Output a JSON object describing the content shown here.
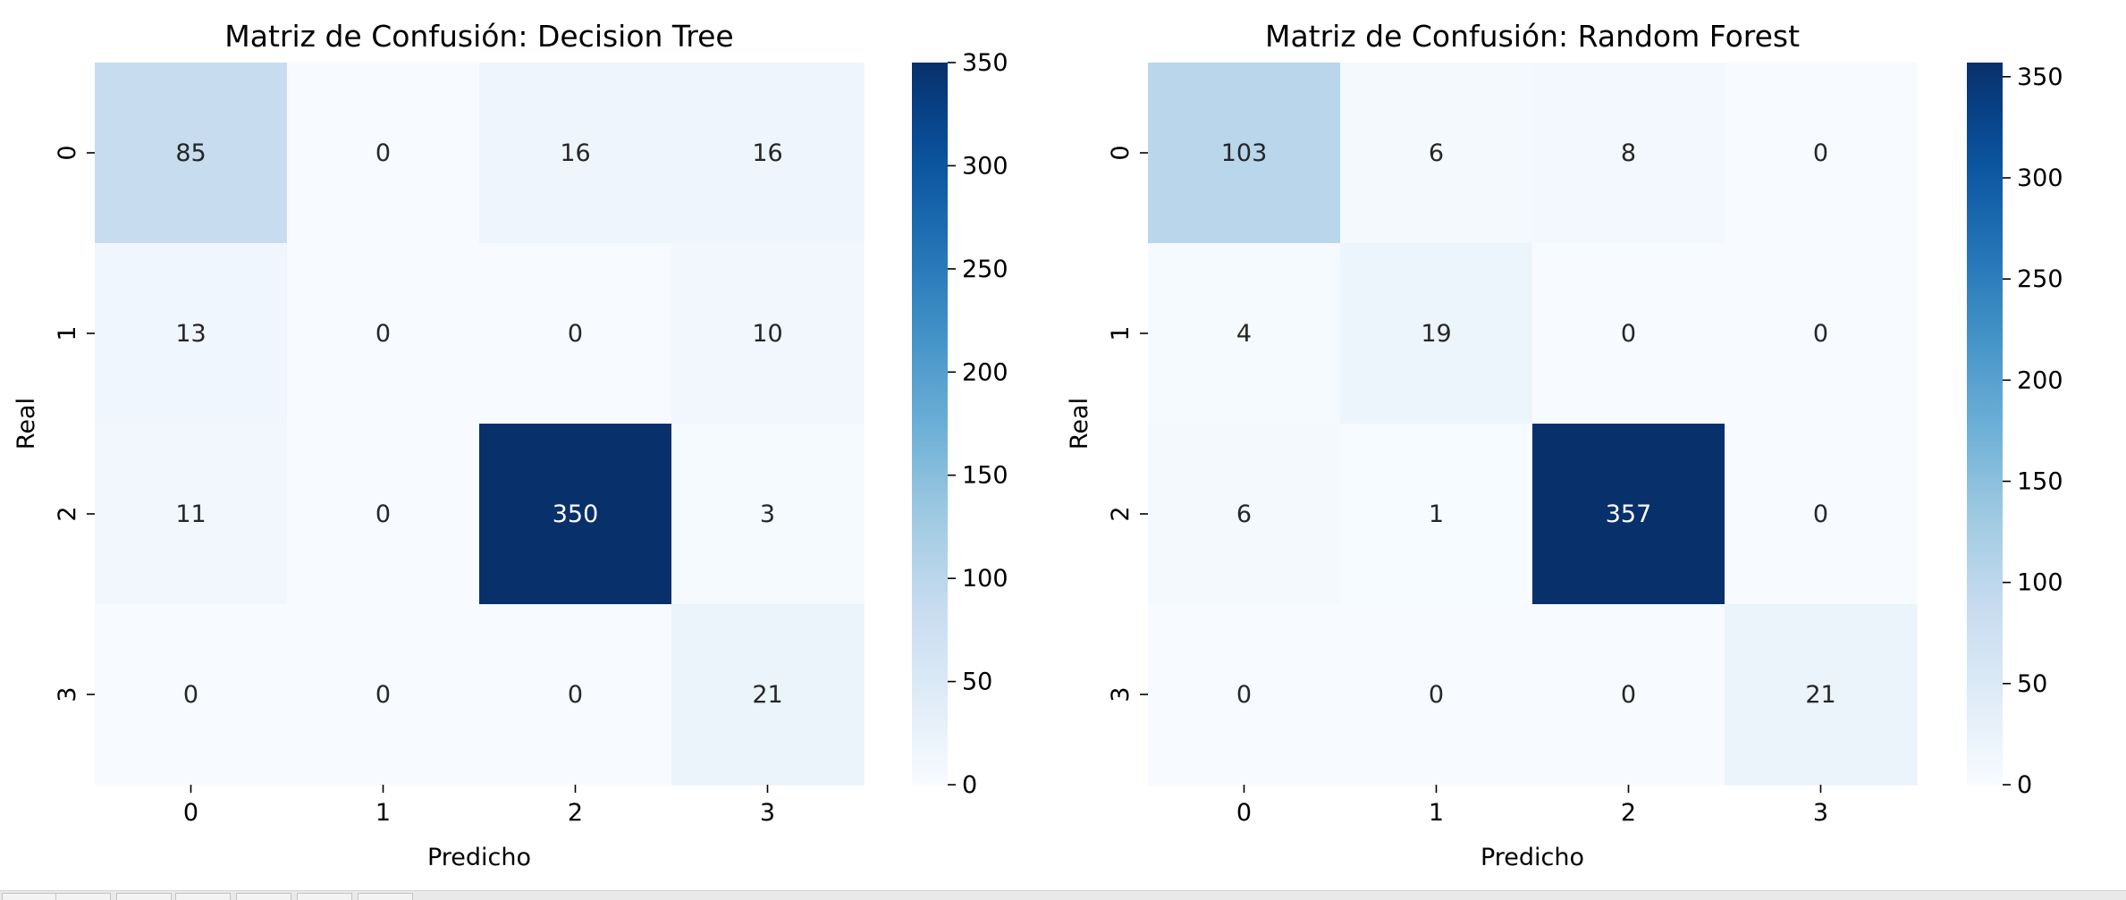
{
  "chart_data": [
    {
      "type": "heatmap",
      "title": "Matriz de Confusión: Decision Tree",
      "xlabel": "Predicho",
      "ylabel": "Real",
      "x_ticks": [
        "0",
        "1",
        "2",
        "3"
      ],
      "y_ticks": [
        "0",
        "1",
        "2",
        "3"
      ],
      "matrix": [
        [
          85,
          0,
          16,
          16
        ],
        [
          13,
          0,
          0,
          10
        ],
        [
          11,
          0,
          350,
          3
        ],
        [
          0,
          0,
          0,
          21
        ]
      ],
      "colormap": "Blues",
      "colorbar": {
        "range": [
          0,
          350
        ],
        "ticks": [
          0,
          50,
          100,
          150,
          200,
          250,
          300,
          350
        ]
      }
    },
    {
      "type": "heatmap",
      "title": "Matriz de Confusión: Random Forest",
      "xlabel": "Predicho",
      "ylabel": "Real",
      "x_ticks": [
        "0",
        "1",
        "2",
        "3"
      ],
      "y_ticks": [
        "0",
        "1",
        "2",
        "3"
      ],
      "matrix": [
        [
          103,
          6,
          8,
          0
        ],
        [
          4,
          19,
          0,
          0
        ],
        [
          6,
          1,
          357,
          0
        ],
        [
          0,
          0,
          0,
          21
        ]
      ],
      "colormap": "Blues",
      "colorbar": {
        "range": [
          0,
          357
        ],
        "ticks": [
          0,
          50,
          100,
          150,
          200,
          250,
          300,
          350
        ]
      }
    }
  ],
  "colors": {
    "blues_scale": [
      "#f7fbff",
      "#deebf7",
      "#c6dbef",
      "#9ecae1",
      "#6baed6",
      "#4292c6",
      "#2171b5",
      "#08519c",
      "#08306b"
    ],
    "text_dark": "#262626",
    "text_light": "#ffffff",
    "axis_text": "#000000"
  }
}
